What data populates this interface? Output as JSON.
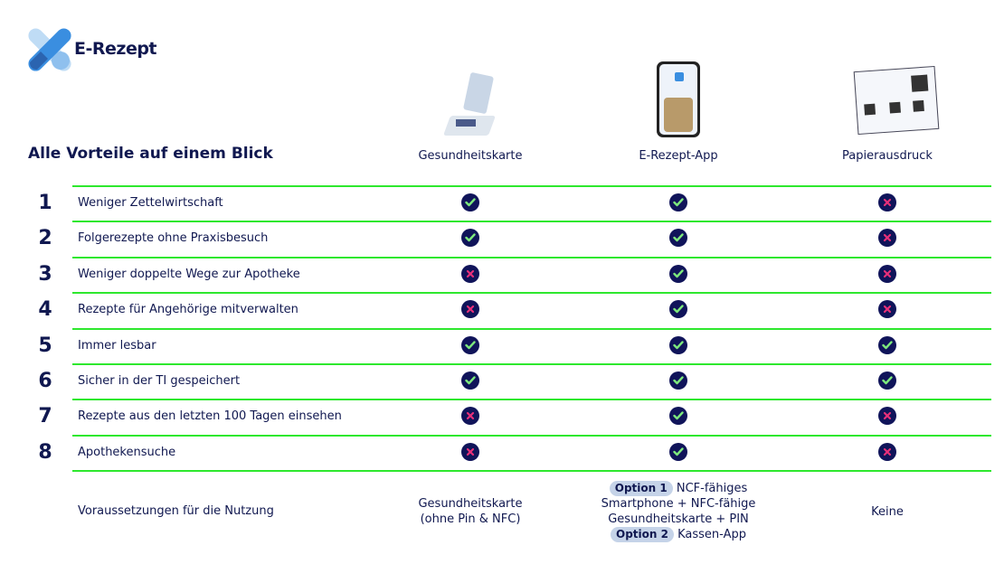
{
  "brand": {
    "name": "E-Rezept",
    "colors": [
      "#bfdcf5",
      "#3a8ee0",
      "#2b64b0",
      "#8fc0ee"
    ]
  },
  "title": "Alle Vorteile auf einem Blick",
  "columns": [
    {
      "label": "Gesundheitskarte",
      "image": "card-terminal"
    },
    {
      "label": "E-Rezept-App",
      "image": "smartphone"
    },
    {
      "label": "Papierausdruck",
      "image": "paper-printout"
    }
  ],
  "accent": "#2ee82e",
  "check_color": "#7de87d",
  "cross_color": "#e8307a",
  "rows": [
    {
      "num": "1",
      "label": "Weniger Zettelwirtschaft",
      "values": [
        true,
        true,
        false
      ]
    },
    {
      "num": "2",
      "label": "Folgerezepte ohne Praxisbesuch",
      "values": [
        true,
        true,
        false
      ]
    },
    {
      "num": "3",
      "label": "Weniger doppelte Wege zur Apotheke",
      "values": [
        false,
        true,
        false
      ]
    },
    {
      "num": "4",
      "label": "Rezepte für Angehörige mitverwalten",
      "values": [
        false,
        true,
        false
      ]
    },
    {
      "num": "5",
      "label": "Immer lesbar",
      "values": [
        true,
        true,
        true
      ]
    },
    {
      "num": "6",
      "label": "Sicher in der TI gespeichert",
      "values": [
        true,
        true,
        true
      ]
    },
    {
      "num": "7",
      "label": "Rezepte aus den letzten 100 Tagen einsehen",
      "values": [
        false,
        true,
        false
      ]
    },
    {
      "num": "8",
      "label": "Apothekensuche",
      "values": [
        false,
        true,
        false
      ]
    }
  ],
  "requirements": {
    "label": "Voraussetzungen für die Nutzung",
    "card": [
      "Gesundheitskarte",
      "(ohne Pin & NFC)"
    ],
    "app": {
      "option1": "Option 1",
      "option1_text": "NCF-fähiges",
      "line2": "Smartphone + NFC-fähige",
      "line3": "Gesundheitskarte + PIN",
      "option2": "Option 2",
      "option2_text": "Kassen-App"
    },
    "paper": "Keine"
  }
}
